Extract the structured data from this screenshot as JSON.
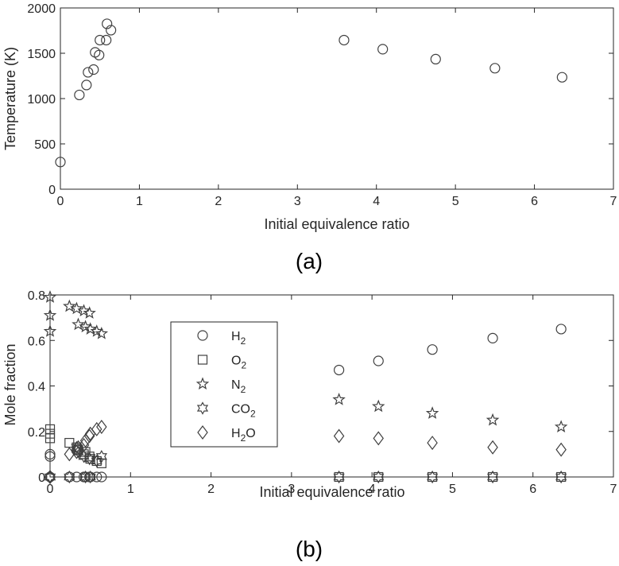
{
  "chart_data": [
    {
      "type": "scatter",
      "panel_label": "(a)",
      "xlabel": "Initial equivalence ratio",
      "ylabel": "Temperature (K)",
      "xlim": [
        0,
        7
      ],
      "ylim": [
        0,
        2000
      ],
      "xticks": [
        0,
        1,
        2,
        3,
        4,
        5,
        6,
        7
      ],
      "yticks": [
        0,
        500,
        1000,
        1500,
        2000
      ],
      "grid": false,
      "series": [
        {
          "marker": "circle",
          "x": [
            0,
            0.24,
            0.33,
            0.35,
            0.42,
            0.44,
            0.49,
            0.5,
            0.58,
            0.59,
            0.64,
            3.59,
            4.08,
            4.75,
            5.5,
            6.35
          ],
          "y": [
            300,
            1040,
            1150,
            1290,
            1320,
            1510,
            1480,
            1645,
            1645,
            1825,
            1755,
            1645,
            1545,
            1435,
            1335,
            1235
          ]
        }
      ]
    },
    {
      "type": "scatter",
      "panel_label": "(b)",
      "xlabel": "Initial equivalence ratio",
      "ylabel": "Mole fraction",
      "xlim": [
        0,
        7
      ],
      "ylim": [
        0,
        0.8
      ],
      "xticks": [
        0,
        1,
        2,
        3,
        4,
        5,
        6,
        7
      ],
      "yticks": [
        0,
        0.2,
        0.4,
        0.6,
        0.8
      ],
      "grid": false,
      "legend": {
        "placement": "center-left"
      },
      "series": [
        {
          "name_main": "H",
          "name_sub": "2",
          "name_tail": "",
          "marker": "circle",
          "x": [
            0,
            0,
            0,
            0.24,
            0.33,
            0.35,
            0.42,
            0.44,
            0.49,
            0.5,
            0.58,
            0.64,
            3.59,
            4.08,
            4.75,
            5.5,
            6.35
          ],
          "y": [
            0.0,
            0.09,
            0.1,
            0.0,
            0.0,
            0.12,
            0.0,
            0.0,
            0.0,
            0.0,
            0.0,
            0.0,
            0.47,
            0.51,
            0.56,
            0.61,
            0.65
          ]
        },
        {
          "name_main": "O",
          "name_sub": "2",
          "name_tail": "",
          "marker": "square",
          "x": [
            0,
            0,
            0,
            0.24,
            0.33,
            0.35,
            0.42,
            0.44,
            0.49,
            0.5,
            0.58,
            0.64,
            3.59,
            4.08,
            4.75,
            5.5,
            6.35
          ],
          "y": [
            0.21,
            0.17,
            0.19,
            0.15,
            0.13,
            0.12,
            0.1,
            0.11,
            0.09,
            0.08,
            0.07,
            0.06,
            0.0,
            0.0,
            0.0,
            0.0,
            0.0
          ]
        },
        {
          "name_main": "N",
          "name_sub": "2",
          "name_tail": "",
          "marker": "star5",
          "x": [
            0,
            0,
            0,
            0.24,
            0.33,
            0.35,
            0.42,
            0.44,
            0.49,
            0.5,
            0.58,
            0.64,
            3.59,
            4.08,
            4.75,
            5.5,
            6.35
          ],
          "y": [
            0.79,
            0.71,
            0.64,
            0.75,
            0.74,
            0.67,
            0.73,
            0.66,
            0.72,
            0.65,
            0.64,
            0.63,
            0.34,
            0.31,
            0.28,
            0.25,
            0.22
          ]
        },
        {
          "name_main": "CO",
          "name_sub": "2",
          "name_tail": "",
          "marker": "star6",
          "x": [
            0,
            0,
            0,
            0.24,
            0.33,
            0.35,
            0.42,
            0.44,
            0.49,
            0.5,
            0.58,
            0.64,
            3.59,
            4.08,
            4.75,
            5.5,
            6.35
          ],
          "y": [
            0.0,
            0.0,
            0.0,
            0.0,
            0.13,
            0.11,
            0.09,
            0.0,
            0.08,
            0.0,
            0.07,
            0.09,
            0.0,
            0.0,
            0.0,
            0.0,
            0.0
          ]
        },
        {
          "name_main": "H",
          "name_sub": "2",
          "name_tail": "O",
          "marker": "diamond",
          "x": [
            0,
            0,
            0.24,
            0.33,
            0.35,
            0.42,
            0.44,
            0.49,
            0.5,
            0.58,
            0.64,
            3.59,
            4.08,
            4.75,
            5.5,
            6.35
          ],
          "y": [
            0.0,
            0.0,
            0.1,
            0.11,
            0.13,
            0.14,
            0.16,
            0.18,
            0.19,
            0.21,
            0.22,
            0.18,
            0.17,
            0.15,
            0.13,
            0.12
          ]
        }
      ]
    }
  ]
}
